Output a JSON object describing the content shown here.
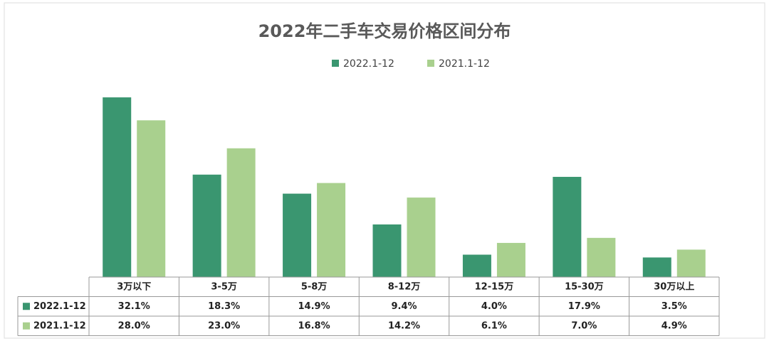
{
  "chart_data": {
    "type": "bar",
    "title": "2022年二手车交易价格区间分布",
    "categories": [
      "3万以下",
      "3-5万",
      "5-8万",
      "8-12万",
      "12-15万",
      "15-30万",
      "30万以上"
    ],
    "series": [
      {
        "name": "2022.1-12",
        "color": "#3a9670",
        "values": [
          32.1,
          18.3,
          14.9,
          9.4,
          4.0,
          17.9,
          3.5
        ],
        "value_labels": [
          "32.1%",
          "18.3%",
          "14.9%",
          "9.4%",
          "4.0%",
          "17.9%",
          "3.5%"
        ]
      },
      {
        "name": "2021.1-12",
        "color": "#a9d08e",
        "values": [
          28.0,
          23.0,
          16.8,
          14.2,
          6.1,
          7.0,
          4.9
        ],
        "value_labels": [
          "28.0%",
          "23.0%",
          "16.8%",
          "14.2%",
          "6.1%",
          "7.0%",
          "4.9%"
        ]
      }
    ]
  }
}
